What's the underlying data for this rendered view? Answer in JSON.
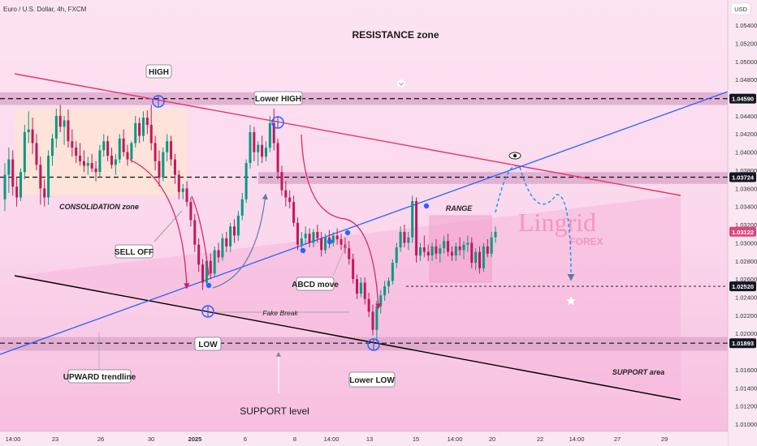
{
  "chart_data": {
    "type": "candlestick",
    "header": {
      "title": "Euro / U.S. Dollar, 4h, FXCM",
      "currency": "USD"
    },
    "price_scale": {
      "ticks": [
        "1.05400",
        "1.05200",
        "1.05000",
        "1.04800",
        "1.04400",
        "1.04200",
        "1.04000",
        "1.03800",
        "1.03600",
        "1.03400",
        "1.03200",
        "1.03000",
        "1.02800",
        "1.02600",
        "1.02400",
        "1.02200",
        "1.02000",
        "1.01600",
        "1.01400",
        "1.01200",
        "1.01000"
      ],
      "ylim": [
        1.0092,
        1.0566
      ]
    },
    "time_scale": {
      "ticks": [
        "14:00",
        "23",
        "26",
        "30",
        "2025",
        "6",
        "8",
        "14:00",
        "13",
        "15",
        "14:00",
        "20",
        "22",
        "14:00",
        "27",
        "29"
      ]
    },
    "highlighted_prices": [
      {
        "price": 1.0459,
        "label": "1.04590",
        "color": "#131722"
      },
      {
        "price": 1.03724,
        "label": "1.03724",
        "color": "#131722"
      },
      {
        "price": 1.03122,
        "label": "1.03122",
        "color": "#e0457b"
      },
      {
        "price": 1.0252,
        "label": "1.02520",
        "color": "#131722"
      },
      {
        "price": 1.01893,
        "label": "1.01893",
        "color": "#131722"
      }
    ],
    "candles": [
      [
        1.0348,
        1.0388,
        1.0335,
        1.0375
      ],
      [
        1.0375,
        1.0405,
        1.0355,
        1.0392
      ],
      [
        1.0392,
        1.0402,
        1.0352,
        1.0362
      ],
      [
        1.0362,
        1.0372,
        1.034,
        1.035
      ],
      [
        1.035,
        1.0382,
        1.0346,
        1.0378
      ],
      [
        1.0378,
        1.043,
        1.037,
        1.0422
      ],
      [
        1.0422,
        1.0445,
        1.041,
        1.0425
      ],
      [
        1.0425,
        1.0438,
        1.0398,
        1.041
      ],
      [
        1.041,
        1.042,
        1.038,
        1.0386
      ],
      [
        1.0386,
        1.0395,
        1.0342,
        1.036
      ],
      [
        1.036,
        1.037,
        1.034,
        1.035
      ],
      [
        1.035,
        1.0402,
        1.0342,
        1.0396
      ],
      [
        1.0396,
        1.042,
        1.0385,
        1.0415
      ],
      [
        1.0415,
        1.0448,
        1.0405,
        1.044
      ],
      [
        1.044,
        1.0452,
        1.0422,
        1.0428
      ],
      [
        1.0428,
        1.044,
        1.0408,
        1.0435
      ],
      [
        1.0435,
        1.0447,
        1.0405,
        1.0412
      ],
      [
        1.0412,
        1.0425,
        1.0395,
        1.0405
      ],
      [
        1.0405,
        1.0412,
        1.0388,
        1.0396
      ],
      [
        1.0396,
        1.041,
        1.0385,
        1.039
      ],
      [
        1.039,
        1.0402,
        1.0378,
        1.0385
      ],
      [
        1.0385,
        1.0395,
        1.0375,
        1.0388
      ],
      [
        1.0388,
        1.0398,
        1.0378,
        1.0382
      ],
      [
        1.0382,
        1.039,
        1.0368,
        1.0378
      ],
      [
        1.0378,
        1.0408,
        1.0372,
        1.0402
      ],
      [
        1.0402,
        1.042,
        1.0395,
        1.0412
      ],
      [
        1.0412,
        1.0418,
        1.039,
        1.0396
      ],
      [
        1.0396,
        1.0405,
        1.0382,
        1.0386
      ],
      [
        1.0386,
        1.0398,
        1.0375,
        1.0392
      ],
      [
        1.0392,
        1.042,
        1.0388,
        1.0415
      ],
      [
        1.0415,
        1.0425,
        1.0395,
        1.04
      ],
      [
        1.04,
        1.0408,
        1.0385,
        1.0392
      ],
      [
        1.0392,
        1.0412,
        1.0388,
        1.041
      ],
      [
        1.041,
        1.044,
        1.0405,
        1.0432
      ],
      [
        1.0432,
        1.0438,
        1.041,
        1.0418
      ],
      [
        1.0418,
        1.0445,
        1.0412,
        1.0438
      ],
      [
        1.0438,
        1.0446,
        1.042,
        1.043
      ],
      [
        1.043,
        1.0452,
        1.0402,
        1.041
      ],
      [
        1.041,
        1.0418,
        1.038,
        1.039
      ],
      [
        1.039,
        1.0402,
        1.0362,
        1.0372
      ],
      [
        1.0372,
        1.0405,
        1.0368,
        1.04
      ],
      [
        1.04,
        1.042,
        1.039,
        1.0412
      ],
      [
        1.0412,
        1.0418,
        1.0385,
        1.0392
      ],
      [
        1.0392,
        1.0398,
        1.0365,
        1.0375
      ],
      [
        1.0375,
        1.038,
        1.0348,
        1.0356
      ],
      [
        1.0356,
        1.0365,
        1.0348,
        1.036
      ],
      [
        1.036,
        1.0368,
        1.034,
        1.0345
      ],
      [
        1.0345,
        1.035,
        1.0318,
        1.0325
      ],
      [
        1.0325,
        1.0332,
        1.029,
        1.0298
      ],
      [
        1.0298,
        1.0305,
        1.0268,
        1.0276
      ],
      [
        1.0276,
        1.0282,
        1.0248,
        1.0256
      ],
      [
        1.0256,
        1.0285,
        1.0252,
        1.028
      ],
      [
        1.028,
        1.0288,
        1.026,
        1.0266
      ],
      [
        1.0266,
        1.0296,
        1.0262,
        1.0292
      ],
      [
        1.0292,
        1.03,
        1.0278,
        1.0284
      ],
      [
        1.0284,
        1.031,
        1.028,
        1.0305
      ],
      [
        1.0305,
        1.0312,
        1.029,
        1.0296
      ],
      [
        1.0296,
        1.0322,
        1.029,
        1.0318
      ],
      [
        1.0318,
        1.0326,
        1.03,
        1.0308
      ],
      [
        1.0308,
        1.0335,
        1.0302,
        1.033
      ],
      [
        1.033,
        1.0355,
        1.0325,
        1.0348
      ],
      [
        1.0348,
        1.0392,
        1.0344,
        1.0388
      ],
      [
        1.0388,
        1.043,
        1.0382,
        1.0422
      ],
      [
        1.0422,
        1.0428,
        1.039,
        1.04
      ],
      [
        1.04,
        1.0412,
        1.0385,
        1.0408
      ],
      [
        1.0408,
        1.0418,
        1.0388,
        1.0395
      ],
      [
        1.0395,
        1.0412,
        1.039,
        1.0405
      ],
      [
        1.0405,
        1.044,
        1.04,
        1.0432
      ],
      [
        1.0432,
        1.0448,
        1.0402,
        1.041
      ],
      [
        1.041,
        1.0415,
        1.037,
        1.0378
      ],
      [
        1.0378,
        1.0385,
        1.0352,
        1.0358
      ],
      [
        1.0358,
        1.0368,
        1.034,
        1.035
      ],
      [
        1.035,
        1.0358,
        1.0338,
        1.0345
      ],
      [
        1.0345,
        1.0352,
        1.0318,
        1.0322
      ],
      [
        1.0322,
        1.0328,
        1.0292,
        1.0298
      ],
      [
        1.0298,
        1.0312,
        1.029,
        1.0305
      ],
      [
        1.0305,
        1.0318,
        1.0298,
        1.031
      ],
      [
        1.031,
        1.0316,
        1.0295,
        1.03
      ],
      [
        1.03,
        1.0315,
        1.0295,
        1.0312
      ],
      [
        1.0312,
        1.032,
        1.03,
        1.0305
      ],
      [
        1.0305,
        1.0312,
        1.0285,
        1.0292
      ],
      [
        1.0292,
        1.031,
        1.0288,
        1.0306
      ],
      [
        1.0306,
        1.0314,
        1.0294,
        1.03
      ],
      [
        1.03,
        1.0312,
        1.0296,
        1.0308
      ],
      [
        1.0308,
        1.0316,
        1.0298,
        1.0304
      ],
      [
        1.0304,
        1.031,
        1.0292,
        1.0298
      ],
      [
        1.0298,
        1.0306,
        1.0288,
        1.0294
      ],
      [
        1.0294,
        1.0302,
        1.0276,
        1.0282
      ],
      [
        1.0282,
        1.0288,
        1.0255,
        1.026
      ],
      [
        1.026,
        1.0265,
        1.0238,
        1.0244
      ],
      [
        1.0244,
        1.0262,
        1.024,
        1.0256
      ],
      [
        1.0256,
        1.0262,
        1.0232,
        1.0238
      ],
      [
        1.0238,
        1.0245,
        1.0218,
        1.0224
      ],
      [
        1.0224,
        1.0232,
        1.0198,
        1.0204
      ],
      [
        1.0204,
        1.0236,
        1.0189,
        1.023
      ],
      [
        1.023,
        1.0248,
        1.0222,
        1.0242
      ],
      [
        1.0242,
        1.0258,
        1.0236,
        1.0252
      ],
      [
        1.0252,
        1.0262,
        1.0244,
        1.0258
      ],
      [
        1.0258,
        1.0282,
        1.0254,
        1.0278
      ],
      [
        1.0278,
        1.03,
        1.0272,
        1.0295
      ],
      [
        1.0295,
        1.0318,
        1.029,
        1.0312
      ],
      [
        1.0312,
        1.032,
        1.0295,
        1.03
      ],
      [
        1.03,
        1.0312,
        1.0292,
        1.0306
      ],
      [
        1.0306,
        1.0352,
        1.03,
        1.0346
      ],
      [
        1.0346,
        1.035,
        1.0278,
        1.0286
      ],
      [
        1.0286,
        1.03,
        1.028,
        1.0295
      ],
      [
        1.0295,
        1.0308,
        1.0284,
        1.029
      ],
      [
        1.029,
        1.0298,
        1.028,
        1.0286
      ],
      [
        1.0286,
        1.03,
        1.028,
        1.0296
      ],
      [
        1.0296,
        1.0304,
        1.0282,
        1.0288
      ],
      [
        1.0288,
        1.0298,
        1.0278,
        1.0294
      ],
      [
        1.0294,
        1.0308,
        1.0288,
        1.0302
      ],
      [
        1.0302,
        1.031,
        1.0285,
        1.029
      ],
      [
        1.029,
        1.0296,
        1.028,
        1.0286
      ],
      [
        1.0286,
        1.03,
        1.028,
        1.0296
      ],
      [
        1.0296,
        1.0306,
        1.0286,
        1.0292
      ],
      [
        1.0292,
        1.0302,
        1.0282,
        1.0298
      ],
      [
        1.0298,
        1.0308,
        1.029,
        1.03
      ],
      [
        1.03,
        1.0306,
        1.0272,
        1.0278
      ],
      [
        1.0278,
        1.0294,
        1.027,
        1.029
      ],
      [
        1.029,
        1.0296,
        1.0266,
        1.0272
      ],
      [
        1.0272,
        1.03,
        1.0268,
        1.0296
      ],
      [
        1.0296,
        1.0304,
        1.0284,
        1.0288
      ],
      [
        1.0288,
        1.0312,
        1.0284,
        1.0306
      ],
      [
        1.0306,
        1.0318,
        1.03,
        1.0312
      ]
    ],
    "zones": [
      {
        "label": "RESISTANCE zone",
        "from": 1.0452,
        "to": 1.0466
      },
      {
        "label": "",
        "from": 1.0365,
        "to": 1.0378
      },
      {
        "label": "SUPPORT area",
        "from": 1.0181,
        "to": 1.0196
      }
    ],
    "boxes": [
      {
        "label": "CONSOLIDATION zone"
      },
      {
        "label": "RANGE"
      }
    ],
    "trendlines": [
      {
        "name": "UPWARD trendline",
        "color": "#2962ff"
      },
      {
        "name": "descending resistance",
        "color": "#e6346b"
      },
      {
        "name": "support trendline",
        "color": "#000000"
      }
    ],
    "labels": {
      "resistance": "RESISTANCE zone",
      "high": "HIGH",
      "lower_high": "Lower HIGH",
      "consolidation": "CONSOLIDATION zone",
      "sell_off": "SELL OFF",
      "abcd": "ABCD move",
      "range": "RANGE",
      "fake_break": "Fake Break",
      "low": "LOW",
      "lower_low": "Lower LOW",
      "upward_trendline": "UPWARD trendline",
      "support_level": "SUPPORT level",
      "support_area": "SUPPORT area"
    },
    "watermark": {
      "brand": "Lingrid",
      "sub": "FOREX"
    },
    "colors": {
      "up": "#089981",
      "down": "#c2185b",
      "background": "#fbd9ee"
    }
  }
}
